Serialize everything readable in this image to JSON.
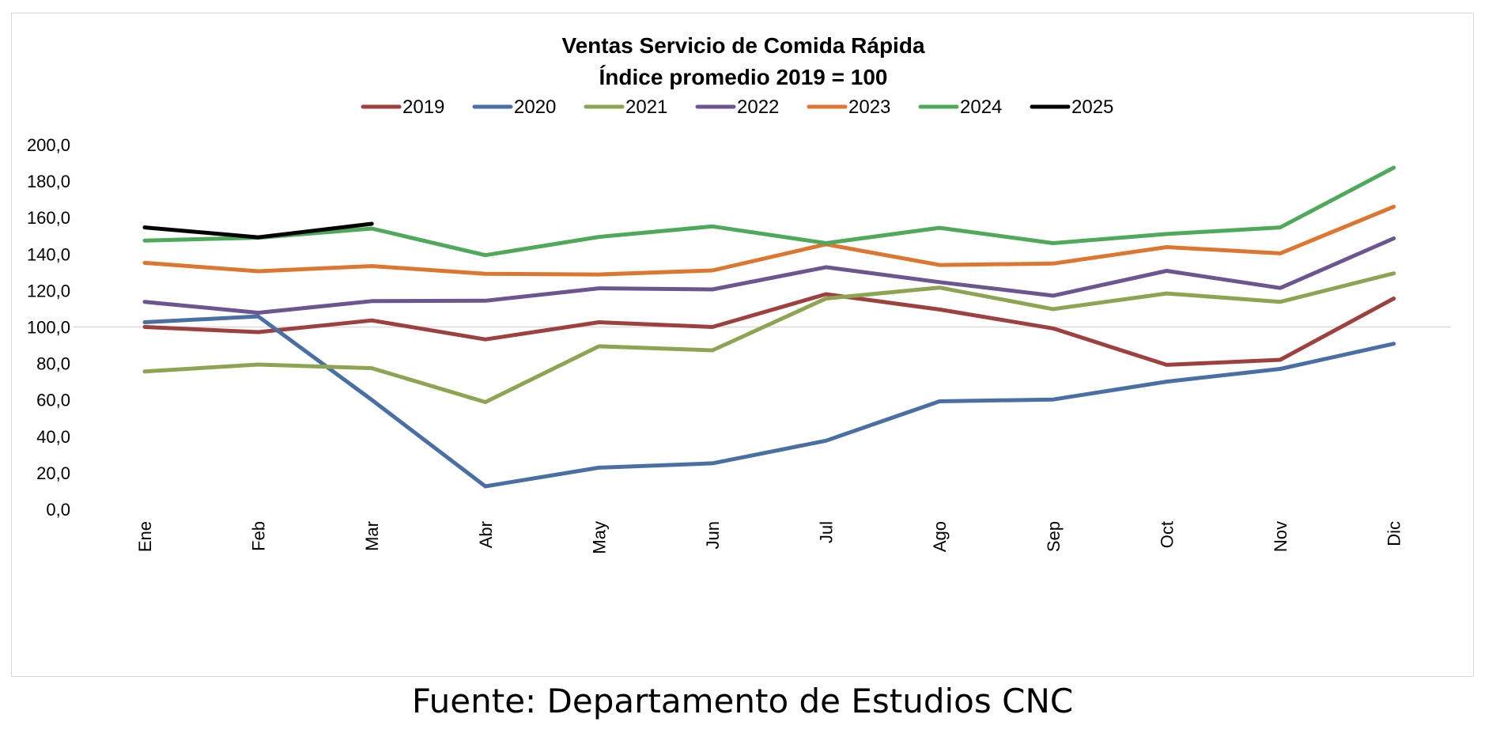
{
  "source_note": "Fuente: Departamento de Estudios CNC",
  "chart_data": {
    "type": "line",
    "title": "Ventas Servicio de Comida Rápida",
    "subtitle": "Índice promedio 2019 = 100",
    "xlabel": "",
    "ylabel": "",
    "categories": [
      "Ene",
      "Feb",
      "Mar",
      "Abr",
      "May",
      "Jun",
      "Jul",
      "Ago",
      "Sep",
      "Oct",
      "Nov",
      "Dic"
    ],
    "ylim": [
      0,
      200
    ],
    "yticks": [
      "0,0",
      "20,0",
      "40,0",
      "60,0",
      "80,0",
      "100,0",
      "120,0",
      "140,0",
      "160,0",
      "180,0",
      "200,0"
    ],
    "reference_line": 100,
    "legend_position": "top-center",
    "grid": false,
    "series": [
      {
        "name": "2019",
        "color": "#9E413E",
        "values": [
          100.0,
          97.2,
          103.6,
          93.2,
          102.6,
          100.0,
          118.0,
          109.6,
          99.2,
          79.2,
          82.0,
          115.6
        ]
      },
      {
        "name": "2020",
        "color": "#4A6FA5",
        "values": [
          102.6,
          105.8,
          60.0,
          12.6,
          22.8,
          25.2,
          37.6,
          59.2,
          60.2,
          70.0,
          77.0,
          90.8
        ]
      },
      {
        "name": "2021",
        "color": "#8DA453",
        "values": [
          75.6,
          79.4,
          77.4,
          58.8,
          89.4,
          87.2,
          115.6,
          121.6,
          109.8,
          118.4,
          113.8,
          129.4
        ]
      },
      {
        "name": "2022",
        "color": "#6C5591",
        "values": [
          113.8,
          107.8,
          114.2,
          114.4,
          121.2,
          120.6,
          132.8,
          124.6,
          117.2,
          130.8,
          121.4,
          148.6
        ]
      },
      {
        "name": "2023",
        "color": "#DD7630",
        "values": [
          135.2,
          130.6,
          133.4,
          129.2,
          128.8,
          131.0,
          145.4,
          134.0,
          134.8,
          143.8,
          140.4,
          166.0
        ]
      },
      {
        "name": "2024",
        "color": "#4FA95A",
        "values": [
          147.4,
          149.0,
          154.0,
          139.4,
          149.4,
          155.2,
          146.0,
          154.4,
          146.0,
          151.0,
          154.6,
          187.4
        ]
      },
      {
        "name": "2025",
        "color": "#000000",
        "values": [
          154.6,
          149.2,
          156.6,
          null,
          null,
          null,
          null,
          null,
          null,
          null,
          null,
          null
        ]
      }
    ]
  }
}
